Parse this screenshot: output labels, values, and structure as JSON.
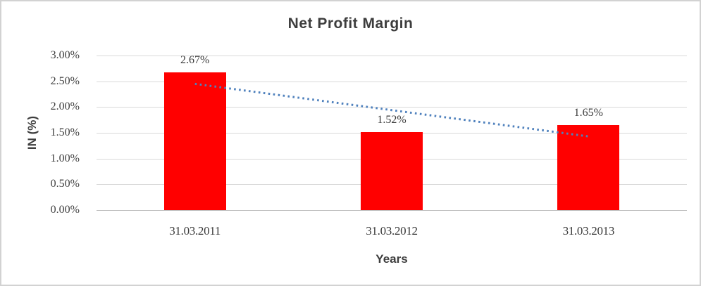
{
  "chart_data": {
    "type": "bar",
    "title": "Net Profit Margin",
    "categories": [
      "31.03.2011",
      "31.03.2012",
      "31.03.2013"
    ],
    "values": [
      2.67,
      1.52,
      1.65
    ],
    "data_labels": [
      "2.67%",
      "1.52%",
      "1.65%"
    ],
    "xlabel": "Years",
    "ylabel": "IN (%)",
    "ylim": [
      0,
      3
    ],
    "ytick_labels": [
      "0.00%",
      "0.50%",
      "1.00%",
      "1.50%",
      "2.00%",
      "2.50%",
      "3.00%"
    ],
    "grid": true,
    "legend": "none",
    "trendline": {
      "style": "dotted",
      "start_value": 2.45,
      "end_value": 1.43
    }
  },
  "colors": {
    "bar": "#ff0000",
    "trendline": "#4f81bd",
    "gridline": "#d9d9d9",
    "axis_line": "#bfbfbf",
    "text": "#3f3f3f",
    "frame_border": "#d2d2d2",
    "background": "#ffffff"
  }
}
